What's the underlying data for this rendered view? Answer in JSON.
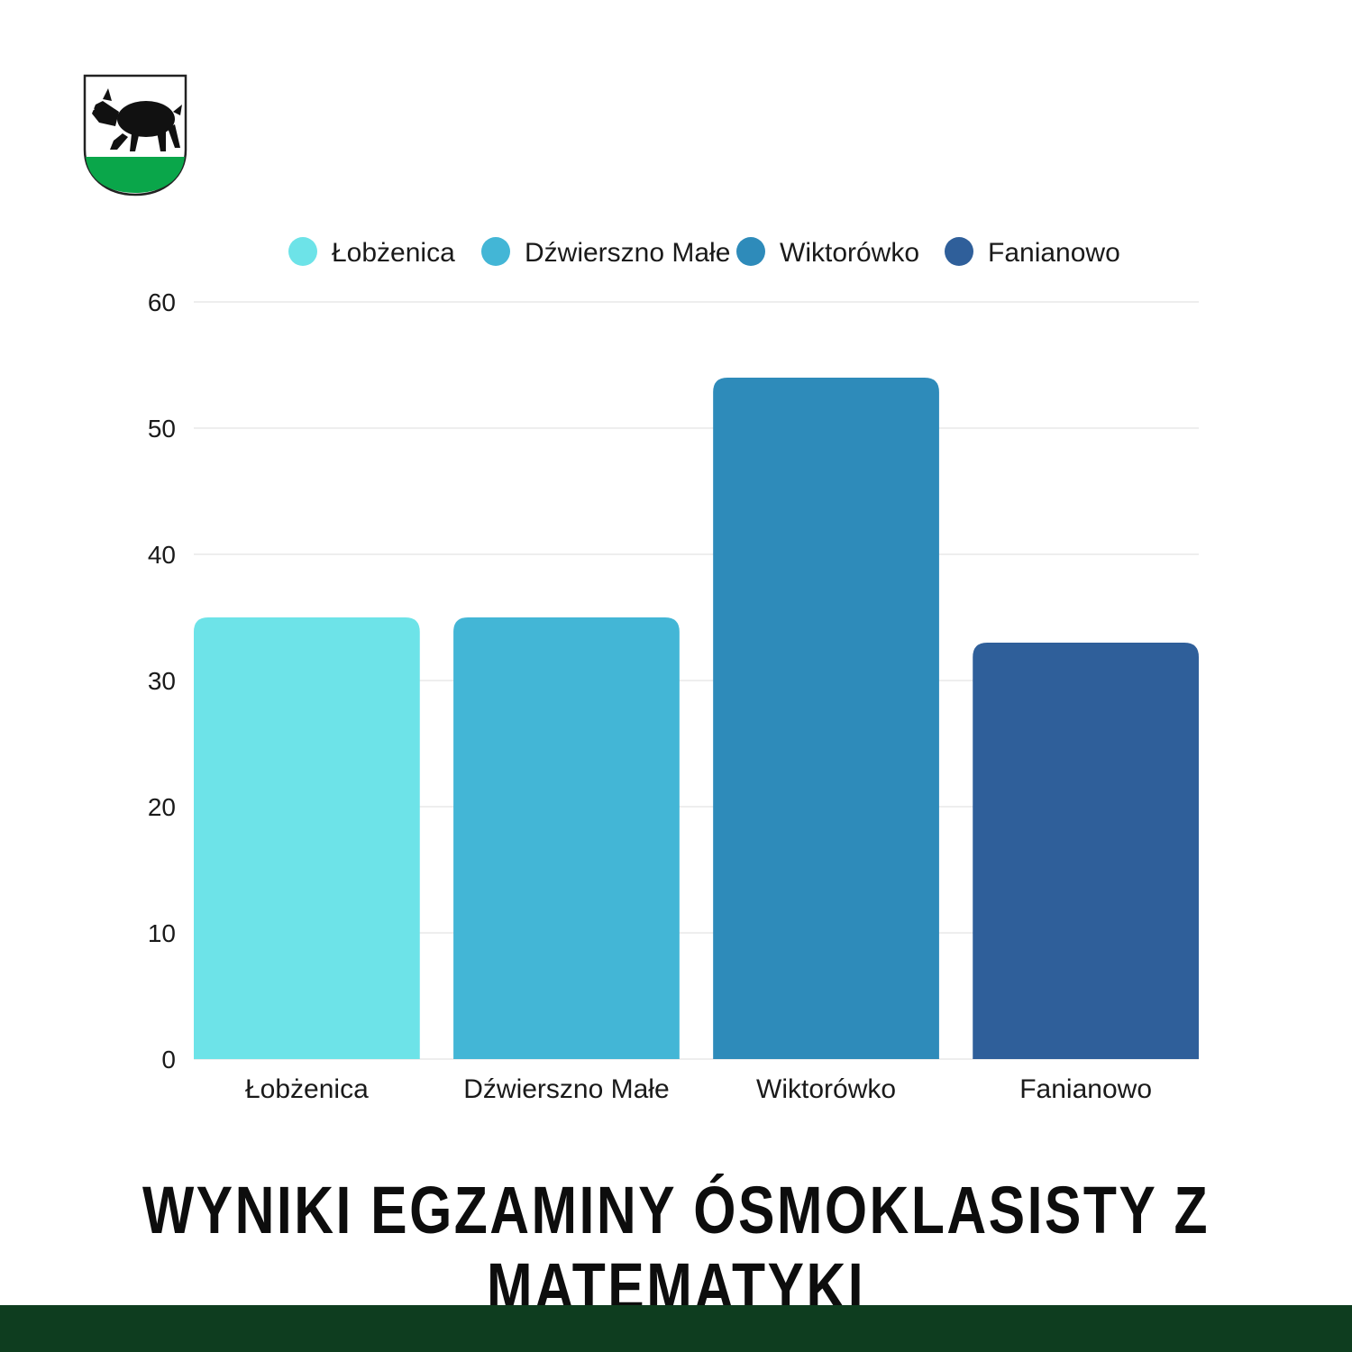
{
  "colors": {
    "series": [
      "#6de3e8",
      "#43b6d6",
      "#2e8bba",
      "#2f5f9a"
    ],
    "grid": "#e3e3e3",
    "footer": "#0e3d1f",
    "crest_green": "#0aa64a"
  },
  "crest_icon": "coat-of-arms-boar",
  "chart_data": {
    "type": "bar",
    "title": "WYNIKI EGZAMINY ÓSMOKLASISTY Z MATEMATYKI",
    "categories": [
      "Łobżenica",
      "Dźwierszno Małe",
      "Wiktorówko",
      "Fanianowo"
    ],
    "values": [
      35,
      35,
      54,
      33
    ],
    "ylim": [
      0,
      60
    ],
    "yticks": [
      0,
      10,
      20,
      30,
      40,
      50,
      60
    ],
    "grid": true,
    "legend": "top"
  }
}
